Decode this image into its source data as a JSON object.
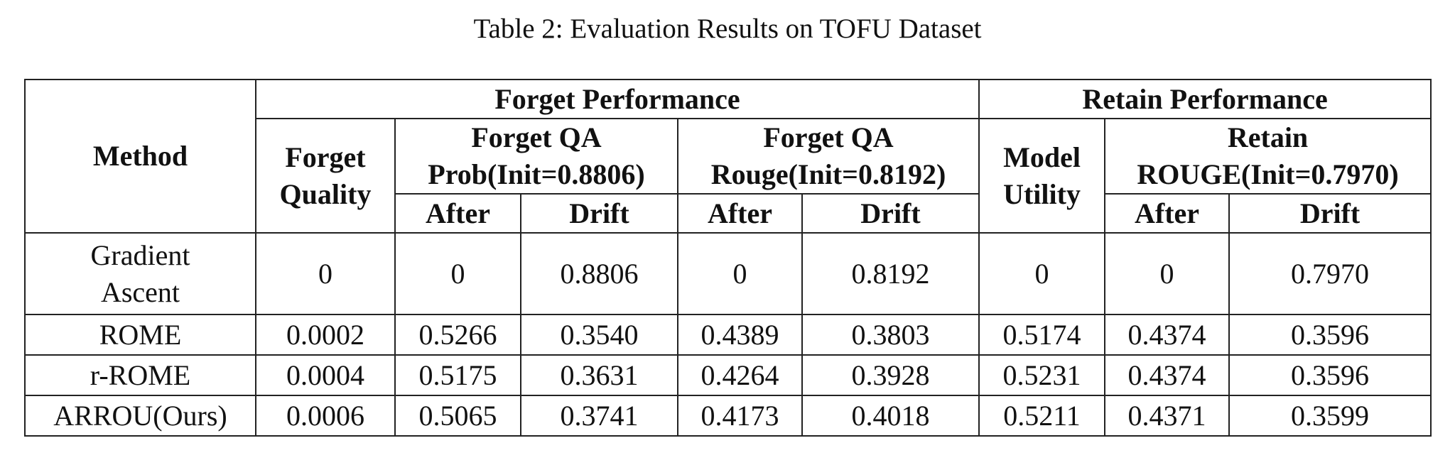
{
  "caption": "Table 2: Evaluation Results on TOFU Dataset",
  "headers": {
    "method": "Method",
    "forget_performance": "Forget Performance",
    "retain_performance": "Retain Performance",
    "forget_quality_line1": "Forget",
    "forget_quality_line2": "Quality",
    "forget_qa_prob_line1": "Forget QA",
    "forget_qa_prob_line2": "Prob(Init=0.8806)",
    "forget_qa_rouge_line1": "Forget QA",
    "forget_qa_rouge_line2": "Rouge(Init=0.8192)",
    "model_utility_line1": "Model",
    "model_utility_line2": "Utility",
    "retain_rouge_line1": "Retain",
    "retain_rouge_line2": "ROUGE(Init=0.7970)",
    "after": "After",
    "drift": "Drift"
  },
  "rows": [
    {
      "method_line1": "Gradient",
      "method_line2": "Ascent",
      "forget_quality": "0",
      "prob_after": "0",
      "prob_drift": "0.8806",
      "rouge_after": "0",
      "rouge_drift": "0.8192",
      "model_utility": "0",
      "retain_after": "0",
      "retain_drift": "0.7970"
    },
    {
      "method": "ROME",
      "forget_quality": "0.0002",
      "prob_after": "0.5266",
      "prob_drift": "0.3540",
      "rouge_after": "0.4389",
      "rouge_drift": "0.3803",
      "model_utility": "0.5174",
      "retain_after": "0.4374",
      "retain_drift": "0.3596"
    },
    {
      "method": "r-ROME",
      "forget_quality": "0.0004",
      "prob_after": "0.5175",
      "prob_drift": "0.3631",
      "rouge_after": "0.4264",
      "rouge_drift": "0.3928",
      "model_utility": "0.5231",
      "retain_after": "0.4374",
      "retain_drift": "0.3596"
    },
    {
      "method": "ARROU(Ours)",
      "forget_quality": "0.0006",
      "prob_after": "0.5065",
      "prob_drift": "0.3741",
      "rouge_after": "0.4173",
      "rouge_drift": "0.4018",
      "model_utility": "0.5211",
      "retain_after": "0.4371",
      "retain_drift": "0.3599"
    }
  ]
}
